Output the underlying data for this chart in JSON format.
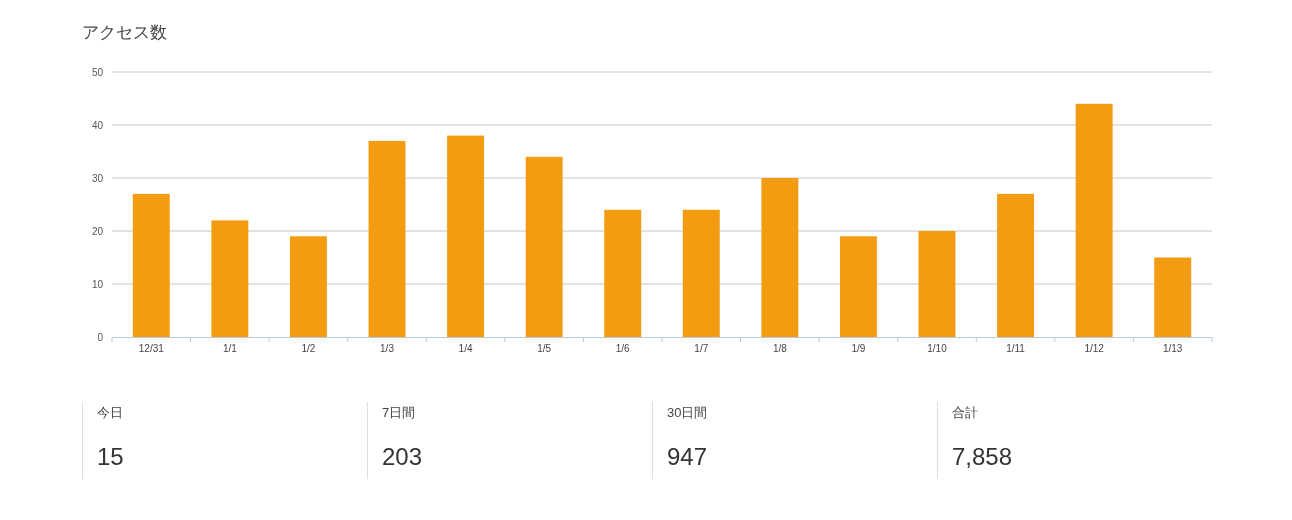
{
  "chart_data": [
    {
      "type": "bar",
      "title": "アクセス数",
      "categories": [
        "12/31",
        "1/1",
        "1/2",
        "1/3",
        "1/4",
        "1/5",
        "1/6",
        "1/7",
        "1/8",
        "1/9",
        "1/10",
        "1/11",
        "1/12",
        "1/13"
      ],
      "values": [
        27,
        22,
        19,
        37,
        38,
        34,
        24,
        24,
        30,
        19,
        20,
        27,
        44,
        15
      ],
      "color": "#f39c12",
      "ylim": [
        0,
        50
      ],
      "yticks": [
        0,
        10,
        20,
        30,
        40,
        50
      ],
      "grid": "y"
    },
    {
      "type": "other",
      "annotations": [
        "今日",
        "15",
        "7日間",
        "203",
        "30日間",
        "947",
        "合計",
        "7,858"
      ]
    }
  ]
}
